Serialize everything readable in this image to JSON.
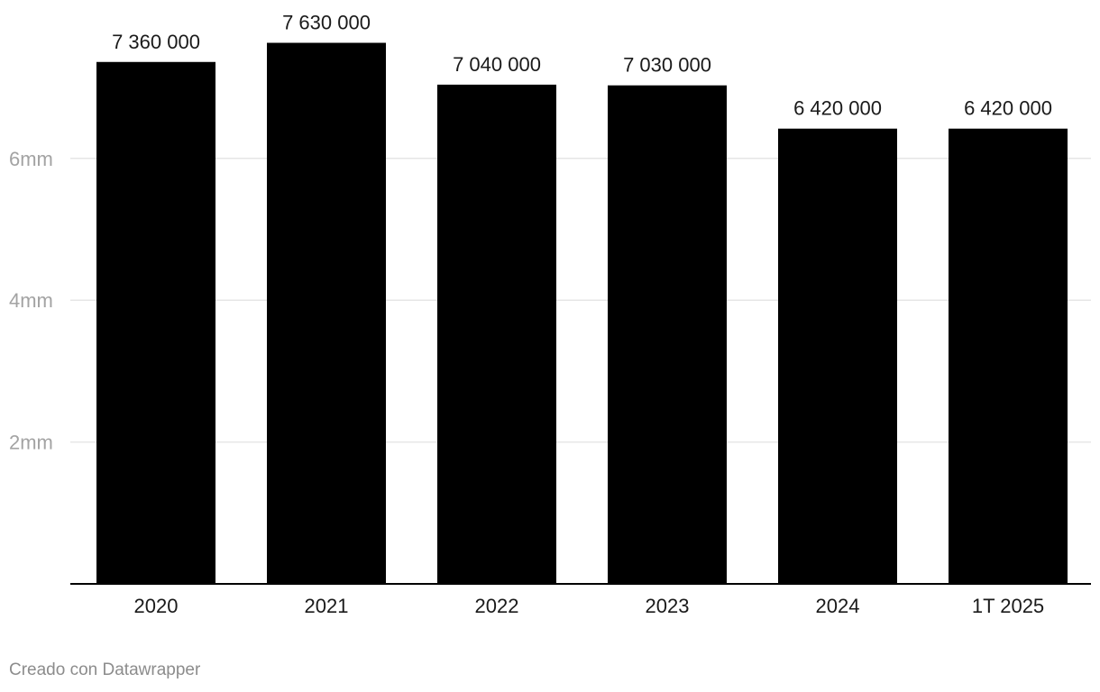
{
  "chart_data": {
    "type": "bar",
    "categories": [
      "2020",
      "2021",
      "2022",
      "2023",
      "2024",
      "1T 2025"
    ],
    "values": [
      7360000,
      7630000,
      7040000,
      7030000,
      6420000,
      6420000
    ],
    "value_labels": [
      "7 360 000",
      "7 630 000",
      "7 040 000",
      "7 030 000",
      "6 420 000",
      "6 420 000"
    ],
    "y_ticks": [
      {
        "value": 2000000,
        "label": "2mm"
      },
      {
        "value": 4000000,
        "label": "4mm"
      },
      {
        "value": 6000000,
        "label": "6mm"
      }
    ],
    "ylim": [
      0,
      8000000
    ],
    "title": "",
    "xlabel": "",
    "ylabel": "",
    "grid": true,
    "bar_color": "#000000",
    "grid_color": "#e6e6e6",
    "axis_color": "#000000"
  },
  "footer": {
    "credit": "Creado con Datawrapper"
  }
}
